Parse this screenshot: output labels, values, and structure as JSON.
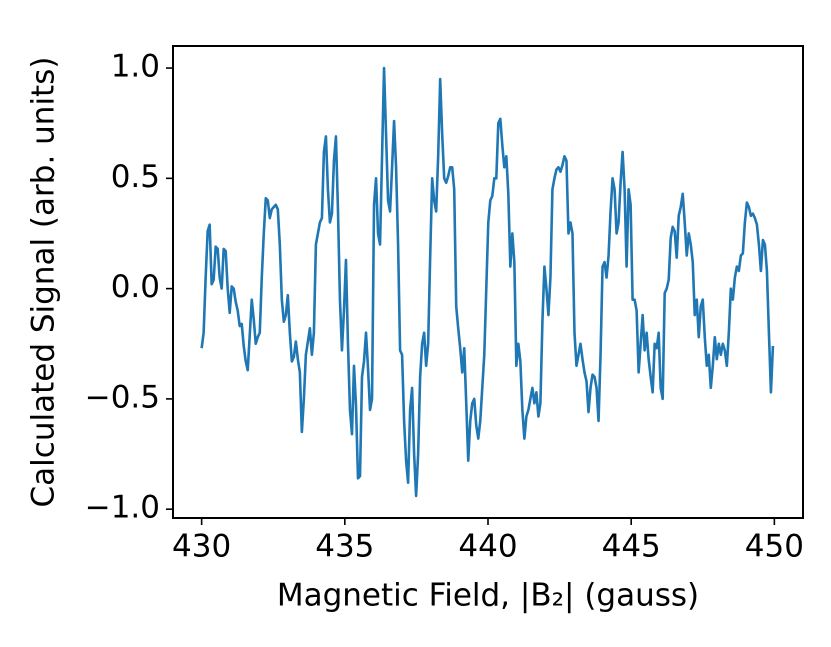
{
  "chart_data": {
    "type": "line",
    "x_label": "Magnetic Field, |B₂| (gauss)",
    "y_label": "Calculated Signal (arb. units)",
    "xlim": [
      429,
      451
    ],
    "ylim": [
      -1.04,
      1.1
    ],
    "xticks": [
      430,
      435,
      440,
      445,
      450
    ],
    "yticks": [
      {
        "value": -1.0,
        "label": "−1.0"
      },
      {
        "value": -0.5,
        "label": "−0.5"
      },
      {
        "value": 0.0,
        "label": "0.0"
      },
      0.5,
      {
        "value": 1.0,
        "label": "1.0"
      }
    ],
    "grid": false,
    "x": [
      430,
      430.07,
      430.14,
      430.21,
      430.28,
      430.35,
      430.42,
      430.49,
      430.56,
      430.63,
      430.7,
      430.77,
      430.84,
      430.91,
      430.98,
      431.05,
      431.12,
      431.19,
      431.26,
      431.33,
      431.4,
      431.47,
      431.54,
      431.61,
      431.68,
      431.75,
      431.82,
      431.89,
      431.96,
      432.03,
      432.1,
      432.17,
      432.24,
      432.31,
      432.38,
      432.45,
      432.52,
      432.59,
      432.66,
      432.73,
      432.8,
      432.87,
      432.94,
      433.01,
      433.08,
      433.15,
      433.22,
      433.29,
      433.36,
      433.43,
      433.5,
      433.57,
      433.64,
      433.71,
      433.78,
      433.85,
      433.92,
      433.99,
      434.06,
      434.13,
      434.2,
      434.27,
      434.34,
      434.41,
      434.48,
      434.55,
      434.62,
      434.69,
      434.76,
      434.83,
      434.9,
      434.97,
      435.04,
      435.11,
      435.18,
      435.25,
      435.32,
      435.39,
      435.46,
      435.53,
      435.6,
      435.67,
      435.74,
      435.81,
      435.88,
      435.95,
      436.02,
      436.09,
      436.16,
      436.23,
      436.3,
      436.37,
      436.44,
      436.51,
      436.58,
      436.65,
      436.72,
      436.79,
      436.86,
      436.93,
      437,
      437.07,
      437.14,
      437.21,
      437.28,
      437.35,
      437.42,
      437.49,
      437.56,
      437.63,
      437.7,
      437.77,
      437.84,
      437.91,
      437.98,
      438.05,
      438.12,
      438.19,
      438.26,
      438.33,
      438.4,
      438.47,
      438.54,
      438.61,
      438.68,
      438.75,
      438.82,
      438.89,
      438.96,
      439.03,
      439.1,
      439.17,
      439.24,
      439.31,
      439.38,
      439.45,
      439.52,
      439.59,
      439.66,
      439.73,
      439.8,
      439.87,
      439.94,
      440.01,
      440.08,
      440.15,
      440.22,
      440.29,
      440.36,
      440.43,
      440.5,
      440.57,
      440.64,
      440.71,
      440.78,
      440.85,
      440.92,
      440.99,
      441.06,
      441.13,
      441.2,
      441.27,
      441.34,
      441.41,
      441.48,
      441.55,
      441.62,
      441.69,
      441.76,
      441.83,
      441.9,
      441.97,
      442.04,
      442.11,
      442.18,
      442.25,
      442.32,
      442.39,
      442.46,
      442.53,
      442.6,
      442.67,
      442.74,
      442.81,
      442.88,
      442.95,
      443.02,
      443.09,
      443.16,
      443.23,
      443.3,
      443.37,
      443.44,
      443.51,
      443.58,
      443.65,
      443.72,
      443.79,
      443.86,
      443.93,
      444,
      444.07,
      444.14,
      444.21,
      444.28,
      444.35,
      444.42,
      444.49,
      444.56,
      444.63,
      444.7,
      444.77,
      444.84,
      444.91,
      444.98,
      445.05,
      445.12,
      445.19,
      445.26,
      445.33,
      445.4,
      445.47,
      445.54,
      445.61,
      445.68,
      445.75,
      445.82,
      445.89,
      445.96,
      446.03,
      446.1,
      446.17,
      446.24,
      446.31,
      446.38,
      446.45,
      446.52,
      446.59,
      446.66,
      446.73,
      446.8,
      446.87,
      446.94,
      447.01,
      447.08,
      447.15,
      447.22,
      447.29,
      447.36,
      447.43,
      447.5,
      447.57,
      447.64,
      447.71,
      447.78,
      447.85,
      447.92,
      447.99,
      448.06,
      448.13,
      448.2,
      448.27,
      448.34,
      448.41,
      448.48,
      448.55,
      448.62,
      448.69,
      448.76,
      448.83,
      448.9,
      448.97,
      449.04,
      449.11,
      449.18,
      449.25,
      449.32,
      449.39,
      449.46,
      449.53,
      449.6,
      449.67,
      449.74,
      449.81,
      449.88,
      449.95
    ],
    "series": [
      {
        "color": "#1f77b4",
        "values": [
          -0.27,
          -0.2,
          0.05,
          0.26,
          0.29,
          0.02,
          0.04,
          0.19,
          0.18,
          0.05,
          0.0,
          0.18,
          0.17,
          0.0,
          -0.11,
          0.01,
          0.0,
          -0.06,
          -0.1,
          -0.17,
          -0.16,
          -0.26,
          -0.33,
          -0.37,
          -0.21,
          -0.05,
          -0.14,
          -0.25,
          -0.22,
          -0.2,
          0.05,
          0.25,
          0.41,
          0.4,
          0.32,
          0.36,
          0.37,
          0.38,
          0.36,
          0.2,
          -0.05,
          -0.15,
          -0.12,
          -0.03,
          -0.2,
          -0.33,
          -0.31,
          -0.24,
          -0.32,
          -0.38,
          -0.65,
          -0.5,
          -0.3,
          -0.24,
          -0.18,
          -0.3,
          -0.2,
          0.2,
          0.25,
          0.3,
          0.32,
          0.62,
          0.69,
          0.45,
          0.3,
          0.34,
          0.58,
          0.69,
          0.36,
          -0.05,
          -0.28,
          -0.1,
          0.13,
          -0.25,
          -0.55,
          -0.66,
          -0.35,
          -0.53,
          -0.86,
          -0.85,
          -0.4,
          -0.33,
          -0.2,
          -0.36,
          -0.55,
          -0.5,
          0.38,
          0.5,
          0.25,
          0.2,
          0.6,
          1.0,
          0.7,
          0.4,
          0.35,
          0.55,
          0.76,
          0.55,
          0.2,
          -0.28,
          -0.3,
          -0.6,
          -0.78,
          -0.88,
          -0.55,
          -0.45,
          -0.75,
          -0.94,
          -0.75,
          -0.4,
          -0.25,
          -0.2,
          -0.35,
          -0.25,
          0.14,
          0.5,
          0.4,
          0.35,
          0.6,
          0.95,
          0.7,
          0.5,
          0.48,
          0.51,
          0.55,
          0.55,
          0.45,
          -0.08,
          -0.18,
          -0.27,
          -0.38,
          -0.27,
          -0.52,
          -0.78,
          -0.6,
          -0.52,
          -0.5,
          -0.62,
          -0.68,
          -0.6,
          -0.45,
          -0.3,
          0.0,
          0.3,
          0.4,
          0.42,
          0.5,
          0.5,
          0.75,
          0.77,
          0.65,
          0.55,
          0.6,
          0.43,
          0.1,
          0.25,
          0.12,
          -0.35,
          -0.25,
          -0.33,
          -0.55,
          -0.68,
          -0.58,
          -0.55,
          -0.5,
          -0.45,
          -0.52,
          -0.47,
          -0.58,
          -0.52,
          -0.15,
          0.1,
          0.0,
          -0.12,
          0.05,
          0.45,
          0.5,
          0.54,
          0.55,
          0.53,
          0.56,
          0.6,
          0.58,
          0.25,
          0.3,
          0.25,
          -0.2,
          -0.35,
          -0.3,
          -0.25,
          -0.32,
          -0.38,
          -0.42,
          -0.56,
          -0.45,
          -0.39,
          -0.4,
          -0.45,
          -0.6,
          -0.3,
          0.1,
          0.12,
          0.05,
          0.15,
          0.35,
          0.5,
          0.45,
          0.25,
          0.3,
          0.48,
          0.62,
          0.45,
          0.1,
          0.45,
          0.38,
          -0.05,
          -0.05,
          -0.1,
          -0.38,
          -0.25,
          -0.12,
          -0.28,
          -0.2,
          -0.32,
          -0.4,
          -0.47,
          -0.25,
          -0.27,
          -0.2,
          -0.45,
          -0.5,
          -0.02,
          0.0,
          0.04,
          0.23,
          0.28,
          0.26,
          0.14,
          0.33,
          0.37,
          0.43,
          0.3,
          0.15,
          0.25,
          0.2,
          0.12,
          -0.12,
          -0.05,
          -0.22,
          -0.08,
          -0.05,
          -0.22,
          -0.35,
          -0.3,
          -0.45,
          -0.35,
          -0.22,
          -0.32,
          -0.25,
          -0.3,
          -0.25,
          -0.28,
          -0.35,
          -0.2,
          0.0,
          -0.05,
          0.05,
          0.1,
          0.08,
          0.15,
          0.16,
          0.3,
          0.39,
          0.37,
          0.33,
          0.34,
          0.32,
          0.29,
          0.2,
          0.08,
          0.22,
          0.2,
          0.08,
          -0.2,
          -0.47,
          -0.26
        ]
      }
    ]
  }
}
